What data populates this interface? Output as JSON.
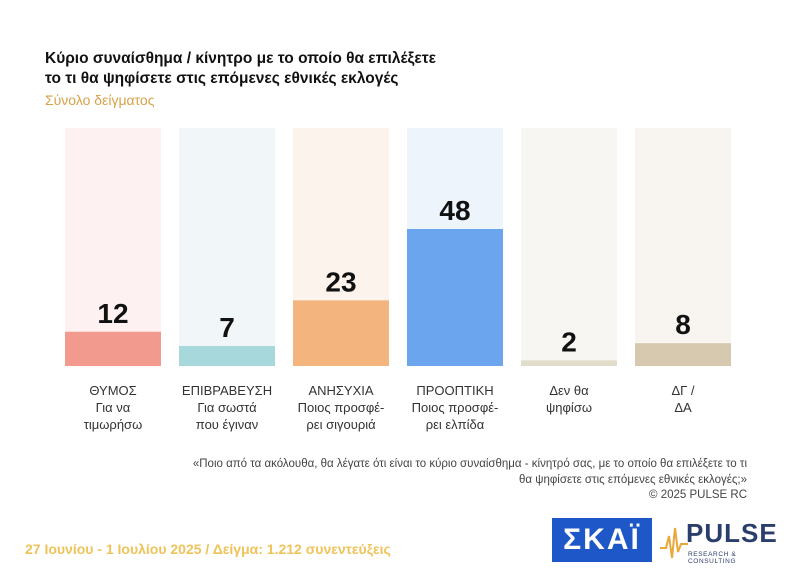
{
  "title_line1": "Κύριο συναίσθημα / κίνητρο με το οποίο θα επιλέξετε",
  "title_line2": "το τι θα ψηφίσετε στις επόμενες εθνικές εκλογές",
  "subtitle": "Σύνολο δείγματος",
  "question": "«Ποιο από τα ακόλουθα, θα λέγατε ότι είναι το κύριο συναίσθημα - κίνητρό σας, με το οποίο θα επιλέξετε το τι θα ψηφίσετε στις επόμενες εθνικές εκλογές;»",
  "copyright": "©  2025  PULSE RC",
  "footer": "27 Ιουνίου - 1 Ιουλίου 2025  /  Δείγμα:  1.212 συνεντεύξεις",
  "logos": {
    "skai": "ΣΚΑΪ",
    "pulse": "PULSE",
    "pulse_sub": "RESEARCH & CONSULTING"
  },
  "chart_data": {
    "type": "bar",
    "categories": [
      [
        "ΘΥΜΟΣ",
        "Για να",
        "τιμωρήσω"
      ],
      [
        "ΕΠΙΒΡΑΒΕΥΣΗ",
        "Για σωστά",
        "που έγιναν"
      ],
      [
        "ΑΝΗΣΥΧΙΑ",
        "Ποιος προσφέ-",
        "ρει σιγουριά"
      ],
      [
        "ΠΡΟΟΠΤΙΚΗ",
        "Ποιος προσφέ-",
        "ρει ελπίδα"
      ],
      [
        "Δεν θα",
        "ψηφίσω"
      ],
      [
        "ΔΓ /",
        "ΔΑ"
      ]
    ],
    "values": [
      12,
      7,
      23,
      48,
      2,
      8
    ],
    "colors": [
      "#f29a8e",
      "#a6d8dc",
      "#f3b47e",
      "#6aa5ee",
      "#e2dccb",
      "#d6c9b0"
    ],
    "bg_colors": [
      "#fdf1f1",
      "#f1f7f8",
      "#fbf3ec",
      "#eef4fc",
      "#f7f6f3",
      "#f8f5f1"
    ],
    "ylim": [
      0,
      48
    ],
    "grid": false,
    "legend": "none"
  }
}
